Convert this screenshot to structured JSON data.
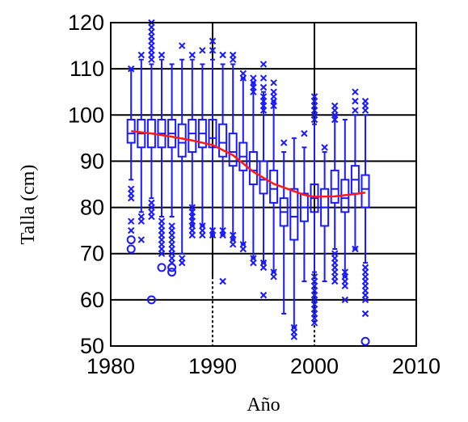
{
  "chart_data": {
    "type": "box",
    "xlabel": "Año",
    "ylabel": "Talla (cm)",
    "xlim": [
      1980,
      2010
    ],
    "ylim": [
      50,
      120
    ],
    "xticks": [
      1980,
      1990,
      2000,
      2010
    ],
    "yticks": [
      50,
      60,
      70,
      80,
      90,
      100,
      110,
      120
    ],
    "grid": true,
    "colors": {
      "box": "#1a1aff",
      "trend": "#ff1a1a",
      "grid": "#000000"
    },
    "boxes": [
      {
        "year": 1982,
        "q1": 94,
        "median": 96,
        "q3": 99,
        "whisker_low": 86,
        "whisker_high": 110
      },
      {
        "year": 1983,
        "q1": 93,
        "median": 96,
        "q3": 99,
        "whisker_low": 79,
        "whisker_high": 112
      },
      {
        "year": 1984,
        "q1": 93,
        "median": 96,
        "q3": 99,
        "whisker_low": 82,
        "whisker_high": 111
      },
      {
        "year": 1985,
        "q1": 93,
        "median": 96,
        "q3": 99,
        "whisker_low": 78,
        "whisker_high": 112
      },
      {
        "year": 1986,
        "q1": 93,
        "median": 96,
        "q3": 99,
        "whisker_low": 78,
        "whisker_high": 111
      },
      {
        "year": 1987,
        "q1": 91,
        "median": 94,
        "q3": 98,
        "whisker_low": 70,
        "whisker_high": 112
      },
      {
        "year": 1988,
        "q1": 92,
        "median": 96,
        "q3": 99,
        "whisker_low": 76,
        "whisker_high": 112
      },
      {
        "year": 1989,
        "q1": 93,
        "median": 96,
        "q3": 99,
        "whisker_low": 76,
        "whisker_high": 111
      },
      {
        "year": 1990,
        "q1": 93,
        "median": 95,
        "q3": 99,
        "whisker_low": 74,
        "whisker_high": 112
      },
      {
        "year": 1991,
        "q1": 91,
        "median": 94,
        "q3": 98,
        "whisker_low": 74,
        "whisker_high": 111
      },
      {
        "year": 1992,
        "q1": 89,
        "median": 92,
        "q3": 96,
        "whisker_low": 73,
        "whisker_high": 111
      },
      {
        "year": 1993,
        "q1": 88,
        "median": 91,
        "q3": 94,
        "whisker_low": 72,
        "whisker_high": 108
      },
      {
        "year": 1994,
        "q1": 85,
        "median": 88,
        "q3": 92,
        "whisker_low": 69,
        "whisker_high": 107
      },
      {
        "year": 1995,
        "q1": 83,
        "median": 86,
        "q3": 90,
        "whisker_low": 68,
        "whisker_high": 105
      },
      {
        "year": 1996,
        "q1": 81,
        "median": 84,
        "q3": 88,
        "whisker_low": 66,
        "whisker_high": 103
      },
      {
        "year": 1997,
        "q1": 76,
        "median": 79,
        "q3": 82,
        "whisker_low": 57,
        "whisker_high": 92
      },
      {
        "year": 1998,
        "q1": 73,
        "median": 78,
        "q3": 84,
        "whisker_low": 54,
        "whisker_high": 95
      },
      {
        "year": 1999,
        "q1": 77,
        "median": 80,
        "q3": 83,
        "whisker_low": 64,
        "whisker_high": 93
      },
      {
        "year": 2000,
        "q1": 79,
        "median": 82,
        "q3": 85,
        "whisker_low": 66,
        "whisker_high": 98
      },
      {
        "year": 2001,
        "q1": 76,
        "median": 80,
        "q3": 84,
        "whisker_low": 64,
        "whisker_high": 92
      },
      {
        "year": 2002,
        "q1": 81,
        "median": 84,
        "q3": 88,
        "whisker_low": 71,
        "whisker_high": 100
      },
      {
        "year": 2003,
        "q1": 79,
        "median": 82,
        "q3": 86,
        "whisker_low": 65,
        "whisker_high": 99
      },
      {
        "year": 2004,
        "q1": 83,
        "median": 86,
        "q3": 89,
        "whisker_low": 71,
        "whisker_high": 100
      },
      {
        "year": 2005,
        "q1": 80,
        "median": 84,
        "q3": 87,
        "whisker_low": 68,
        "whisker_high": 100
      }
    ],
    "outliers_x": [
      {
        "year": 1982,
        "values": [
          110,
          84,
          83,
          82,
          77,
          75
        ]
      },
      {
        "year": 1983,
        "values": [
          113,
          78,
          77,
          73
        ]
      },
      {
        "year": 1984,
        "values": [
          120,
          119,
          118,
          117,
          116,
          115,
          114,
          113,
          112,
          81,
          80,
          79,
          78
        ]
      },
      {
        "year": 1985,
        "values": [
          113,
          77,
          76,
          75,
          74,
          73,
          72,
          71,
          70
        ]
      },
      {
        "year": 1986,
        "values": [
          76,
          75,
          74,
          73,
          72,
          71,
          70,
          69,
          68
        ]
      },
      {
        "year": 1987,
        "values": [
          115,
          69,
          68
        ]
      },
      {
        "year": 1988,
        "values": [
          113,
          80,
          79,
          78,
          77,
          76,
          75,
          74
        ]
      },
      {
        "year": 1989,
        "values": [
          114,
          76,
          75,
          74
        ]
      },
      {
        "year": 1990,
        "values": [
          116,
          114,
          75,
          74
        ]
      },
      {
        "year": 1991,
        "values": [
          113,
          75,
          74,
          64
        ]
      },
      {
        "year": 1992,
        "values": [
          113,
          112,
          74,
          73,
          72
        ]
      },
      {
        "year": 1993,
        "values": [
          109,
          108,
          72,
          71
        ]
      },
      {
        "year": 1994,
        "values": [
          108,
          107,
          106,
          105,
          69,
          68
        ]
      },
      {
        "year": 1995,
        "values": [
          111,
          108,
          106,
          104,
          103,
          102,
          101,
          68,
          67,
          61
        ]
      },
      {
        "year": 1996,
        "values": [
          107,
          105,
          104,
          103,
          102,
          66,
          65
        ]
      },
      {
        "year": 1997,
        "values": [
          94
        ]
      },
      {
        "year": 1998,
        "values": [
          54,
          53,
          52
        ]
      },
      {
        "year": 1999,
        "values": [
          96
        ]
      },
      {
        "year": 2000,
        "values": [
          104,
          103,
          102,
          101,
          100,
          99,
          65,
          64,
          63,
          62,
          61,
          60,
          59,
          58,
          57,
          56,
          55
        ]
      },
      {
        "year": 2001,
        "values": [
          93
        ]
      },
      {
        "year": 2002,
        "values": [
          102,
          101,
          100,
          99,
          70,
          69,
          68,
          67,
          66,
          65,
          64
        ]
      },
      {
        "year": 2003,
        "values": [
          66,
          65,
          64,
          63,
          60
        ]
      },
      {
        "year": 2004,
        "values": [
          105,
          103,
          101,
          71
        ]
      },
      {
        "year": 2005,
        "values": [
          103,
          102,
          101,
          67,
          66,
          65,
          64,
          63,
          62,
          61,
          60,
          57
        ]
      }
    ],
    "outliers_o": [
      {
        "year": 1982,
        "values": [
          73,
          71
        ]
      },
      {
        "year": 1984,
        "values": [
          60
        ]
      },
      {
        "year": 1985,
        "values": [
          67
        ]
      },
      {
        "year": 1986,
        "values": [
          67,
          66
        ]
      },
      {
        "year": 2005,
        "values": [
          51
        ]
      }
    ],
    "trend": {
      "name": "",
      "x": [
        1982,
        1984,
        1986,
        1988,
        1990,
        1992,
        1994,
        1996,
        1998,
        1999,
        2000,
        2002,
        2004,
        2005
      ],
      "y": [
        96.5,
        96.0,
        95.3,
        94.5,
        93.5,
        91.3,
        87.7,
        85.1,
        83.5,
        82.7,
        82.3,
        82.4,
        82.9,
        83.2
      ]
    }
  }
}
